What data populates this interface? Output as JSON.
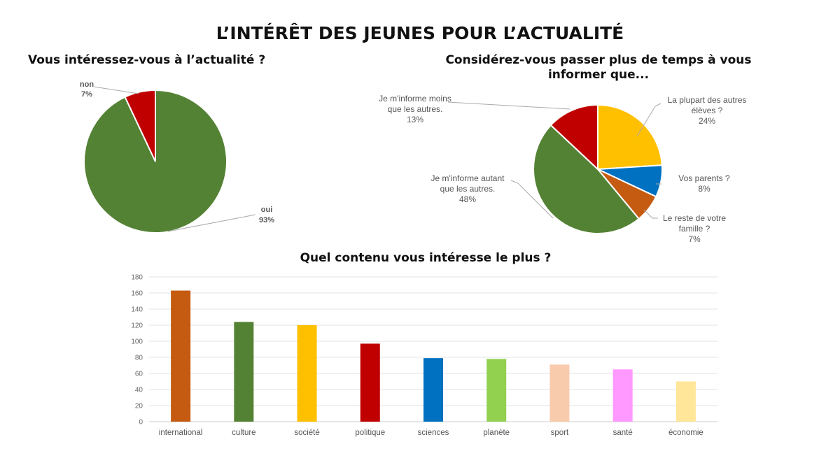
{
  "title": "L’INTÉRÊT DES JEUNES POUR L’ACTUALITÉ",
  "chart_data": [
    {
      "type": "pie",
      "title": "Vous intéressez-vous à l’actualité ?",
      "slices": [
        {
          "label": "oui",
          "value": 93,
          "value_label": "93%",
          "color": "#548235"
        },
        {
          "label": "non",
          "value": 7,
          "value_label": "7%",
          "color": "#C00000"
        }
      ]
    },
    {
      "type": "pie",
      "title_lines": [
        "Considérez-vous passer plus de temps à vous",
        "informer que..."
      ],
      "slices": [
        {
          "label_lines": [
            "La plupart des autres",
            "élèves ?"
          ],
          "value": 24,
          "value_label": "24%",
          "color": "#FFC000"
        },
        {
          "label_lines": [
            "Vos parents ?"
          ],
          "value": 8,
          "value_label": "8%",
          "color": "#0070C0"
        },
        {
          "label_lines": [
            "Le reste de votre",
            "famille ?"
          ],
          "value": 7,
          "value_label": "7%",
          "color": "#C55A11"
        },
        {
          "label_lines": [
            "Je m'informe autant",
            "que les autres."
          ],
          "value": 48,
          "value_label": "48%",
          "color": "#548235"
        },
        {
          "label_lines": [
            "Je m'informe moins",
            "que les autres."
          ],
          "value": 13,
          "value_label": "13%",
          "color": "#C00000"
        }
      ]
    },
    {
      "type": "bar",
      "title": "Quel contenu vous intéresse le plus ?",
      "categories": [
        "international",
        "culture",
        "société",
        "politique",
        "sciences",
        "planète",
        "sport",
        "santé",
        "économie"
      ],
      "values": [
        163,
        124,
        120,
        97,
        79,
        78,
        71,
        65,
        50
      ],
      "colors": [
        "#C55A11",
        "#548235",
        "#FFC000",
        "#C00000",
        "#0070C0",
        "#92D050",
        "#F8CBAD",
        "#FF99FF",
        "#FFE699"
      ],
      "ylim": [
        0,
        180
      ],
      "yticks": [
        0,
        20,
        40,
        60,
        80,
        100,
        120,
        140,
        160,
        180
      ],
      "grid": true,
      "xlabel": "",
      "ylabel": ""
    }
  ]
}
